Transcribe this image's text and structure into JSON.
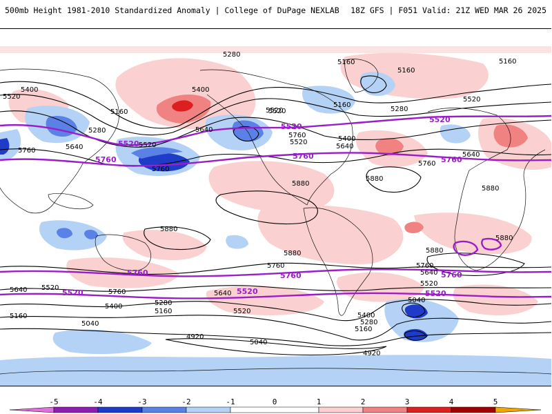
{
  "header": {
    "title_left": "500mb Height 1981-2010 Standardized Anomaly | College of DuPage NEXLAB",
    "title_right": "18Z GFS | F051 Valid: 21Z WED MAR 26 2025"
  },
  "colors": {
    "neg5": "#e070e0",
    "neg4": "#8c1eb4",
    "neg3": "#1e3cc8",
    "neg2": "#5a82e6",
    "neg1": "#b4d2f5",
    "pos1": "#fbd0d0",
    "pos2": "#f08282",
    "pos3": "#dc2020",
    "pos4": "#a00000",
    "pos5": "#f0a800",
    "contour": "#000000",
    "highlight_contour": "#9a1ec8"
  },
  "colorbar": {
    "ticks": [
      "-5",
      "-4",
      "-3",
      "-2",
      "-1",
      "0",
      "1",
      "2",
      "3",
      "4",
      "5"
    ]
  },
  "contour_labels": {
    "l5280_a": "5280",
    "l5160_a": "5160",
    "l5160_b": "5160",
    "l5160_c": "5160",
    "l5400_a": "5400",
    "l5520_a": "5520",
    "l5400_b": "5400",
    "l5160_d": "5160",
    "l5280_b": "5280",
    "l5640_a": "5640",
    "l5520_b": "5520",
    "l5520_c": "5520",
    "l5760_a": "5760",
    "l5640_b": "5640",
    "l5760_b": "5760",
    "l5280_c": "5280",
    "l5400_c": "5400",
    "l5640_c": "5640",
    "l5160_e": "5160",
    "l5520_d": "5520",
    "l5640_d": "5640",
    "l5760_c": "5760",
    "l5880_a": "5880",
    "l5880_b": "5880",
    "l5880_c": "5880",
    "l5880_d": "5880",
    "l5880_e": "5880",
    "l5880_f": "5880",
    "l5880_g": "5880",
    "l5760_d": "5760",
    "l5760_e": "5760",
    "l5640_e": "5640",
    "l5520_e": "5520",
    "l5640_f": "5640",
    "l5520_f": "5520",
    "l5760_f": "5760",
    "l5640_g": "5640",
    "l5160_f": "5160",
    "l5400_d": "5400",
    "l5280_d": "5280",
    "l5160_g": "5160",
    "l5520_g": "5520",
    "l5040_a": "5040",
    "l4920_a": "4920",
    "l5040_b": "5040",
    "l4920_b": "4920",
    "l5400_e": "5400",
    "l5280_e": "5280",
    "l5160_h": "5160",
    "l5040_c": "5040",
    "l5520_h": "5520",
    "l5520_i": "5520"
  },
  "highlight_labels": {
    "h5520_a": "5520",
    "h5520_b": "5520",
    "h5520_c": "5520",
    "h5760_a": "5760",
    "h5760_b": "5760",
    "h5760_c": "5760",
    "h5760_d": "5760",
    "h5520_d": "5520",
    "h5520_e": "5520",
    "h5520_f": "5520"
  }
}
